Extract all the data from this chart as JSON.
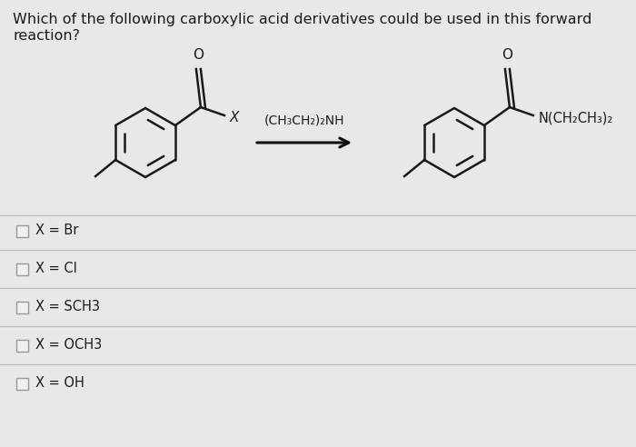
{
  "background_color": "#e8e8e8",
  "title_line1": "Which of the following carboxylic acid derivatives could be used in this forward",
  "title_line2": "reaction?",
  "title_fontsize": 11.5,
  "reagent_label": "(CH₃CH₂)₂NH",
  "product_label": "N(CH₂CH₃)₂",
  "x_label": "X",
  "options": [
    "X = Br",
    "X = Cl",
    "X = SCH3",
    "X = OCH3",
    "X = OH"
  ],
  "checkbox_color": "#f0f0f0",
  "checkbox_border": "#999999",
  "line_color": "#1a1a1a",
  "option_fontsize": 10.5,
  "divider_color": "#bbbbbb",
  "arrow_color": "#111111"
}
